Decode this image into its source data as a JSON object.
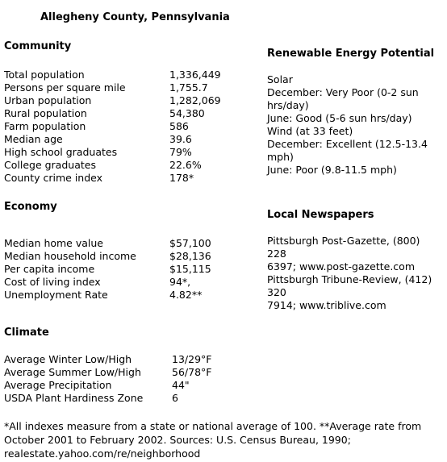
{
  "title": "Allegheny County, Pennsylvania",
  "community": {
    "heading": "Community",
    "rows": [
      {
        "label": "Total population",
        "value": "1,336,449"
      },
      {
        "label": "Persons per square mile",
        "value": "1,755.7"
      },
      {
        "label": "Urban population",
        "value": "1,282,069"
      },
      {
        "label": "Rural population",
        "value": "54,380"
      },
      {
        "label": "Farm population",
        "value": "586"
      },
      {
        "label": "Median age",
        "value": "39.6"
      },
      {
        "label": "High school graduates",
        "value": "79%"
      },
      {
        "label": "College graduates",
        "value": "22.6%"
      },
      {
        "label": "County crime index",
        "value": "178*"
      }
    ]
  },
  "economy": {
    "heading": "Economy",
    "rows": [
      {
        "label": "Median home value",
        "value": "$57,100"
      },
      {
        "label": "Median household income",
        "value": "$28,136"
      },
      {
        "label": "Per capita income",
        "value": "$15,115"
      },
      {
        "label": "Cost of living index",
        "value": "94*,"
      },
      {
        "label": "Unemployment Rate",
        "value": "4.82**"
      }
    ]
  },
  "climate": {
    "heading": "Climate",
    "rows": [
      {
        "label": "Average Winter Low/High",
        "value": "13/29°F"
      },
      {
        "label": "Average Summer Low/High",
        "value": "56/78°F"
      },
      {
        "label": "Average Precipitation",
        "value": "44\""
      },
      {
        "label": "USDA Plant Hardiness Zone",
        "value": "6"
      }
    ]
  },
  "renewable": {
    "heading": "Renewable Energy Potential",
    "lines": [
      "Solar",
      "December: Very Poor (0-2 sun hrs/day)",
      "June: Good (5-6 sun hrs/day)",
      "Wind (at 33 feet)",
      "December: Excellent (12.5-13.4 mph)",
      "June: Poor (9.8-11.5 mph)"
    ]
  },
  "newspapers": {
    "heading": "Local Newspapers",
    "lines": [
      "Pittsburgh Post-Gazette, (800) 228",
      "6397; www.post-gazette.com",
      "Pittsburgh Tribune-Review, (412) 320",
      "7914; www.triblive.com"
    ]
  },
  "footnote": "*All indexes measure from a state or national average of 100. **Average rate from October 2001 to February 2002. Sources: U.S. Census Bureau, 1990; realestate.yahoo.com/re/neighborhood"
}
